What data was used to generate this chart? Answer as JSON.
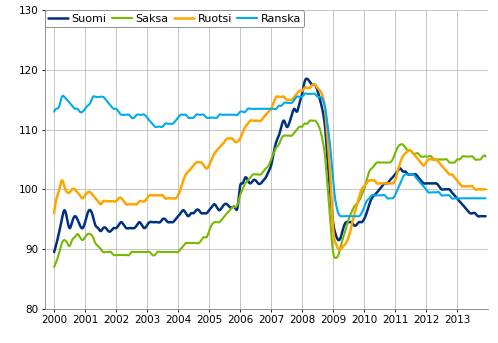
{
  "xlim": [
    1999.7,
    2014.0
  ],
  "ylim": [
    80,
    130
  ],
  "yticks": [
    80,
    90,
    100,
    110,
    120,
    130
  ],
  "xticks": [
    2000,
    2001,
    2002,
    2003,
    2004,
    2005,
    2006,
    2007,
    2008,
    2009,
    2010,
    2011,
    2012,
    2013
  ],
  "colors": {
    "Suomi": "#003080",
    "Saksa": "#76b900",
    "Ruotsi": "#ffa500",
    "Ranska": "#00aaee"
  },
  "linewidths": {
    "Suomi": 1.8,
    "Saksa": 1.5,
    "Ruotsi": 1.8,
    "Ranska": 1.5
  },
  "grid_color": "#b0b0b0",
  "background_color": "#ffffff",
  "Suomi_x": [
    2000.0,
    2000.08,
    2000.17,
    2000.25,
    2000.33,
    2000.42,
    2000.5,
    2000.58,
    2000.67,
    2000.75,
    2000.83,
    2000.92,
    2001.0,
    2001.08,
    2001.17,
    2001.25,
    2001.33,
    2001.42,
    2001.5,
    2001.58,
    2001.67,
    2001.75,
    2001.83,
    2001.92,
    2002.0,
    2002.08,
    2002.17,
    2002.25,
    2002.33,
    2002.42,
    2002.5,
    2002.58,
    2002.67,
    2002.75,
    2002.83,
    2002.92,
    2003.0,
    2003.08,
    2003.17,
    2003.25,
    2003.33,
    2003.42,
    2003.5,
    2003.58,
    2003.67,
    2003.75,
    2003.83,
    2003.92,
    2004.0,
    2004.08,
    2004.17,
    2004.25,
    2004.33,
    2004.42,
    2004.5,
    2004.58,
    2004.67,
    2004.75,
    2004.83,
    2004.92,
    2005.0,
    2005.08,
    2005.17,
    2005.25,
    2005.33,
    2005.42,
    2005.5,
    2005.58,
    2005.67,
    2005.75,
    2005.83,
    2005.92,
    2006.0,
    2006.08,
    2006.17,
    2006.25,
    2006.33,
    2006.42,
    2006.5,
    2006.58,
    2006.67,
    2006.75,
    2006.83,
    2006.92,
    2007.0,
    2007.08,
    2007.17,
    2007.25,
    2007.33,
    2007.42,
    2007.5,
    2007.58,
    2007.67,
    2007.75,
    2007.83,
    2007.92,
    2008.0,
    2008.08,
    2008.17,
    2008.25,
    2008.33,
    2008.42,
    2008.5,
    2008.58,
    2008.67,
    2008.75,
    2008.83,
    2008.92,
    2009.0,
    2009.08,
    2009.17,
    2009.25,
    2009.33,
    2009.42,
    2009.5,
    2009.58,
    2009.67,
    2009.75,
    2009.83,
    2009.92,
    2010.0,
    2010.08,
    2010.17,
    2010.25,
    2010.33,
    2010.42,
    2010.5,
    2010.58,
    2010.67,
    2010.75,
    2010.83,
    2010.92,
    2011.0,
    2011.08,
    2011.17,
    2011.25,
    2011.33,
    2011.42,
    2011.5,
    2011.58,
    2011.67,
    2011.75,
    2011.83,
    2011.92,
    2012.0,
    2012.08,
    2012.17,
    2012.25,
    2012.33,
    2012.42,
    2012.5,
    2012.58,
    2012.67,
    2012.75,
    2012.83,
    2012.92,
    2013.0,
    2013.08,
    2013.17,
    2013.25,
    2013.33,
    2013.42,
    2013.5,
    2013.58,
    2013.67,
    2013.75,
    2013.83,
    2013.92
  ],
  "Suomi_y": [
    89.5,
    91.0,
    93.0,
    95.0,
    96.5,
    95.0,
    93.5,
    94.5,
    95.5,
    95.0,
    94.0,
    93.5,
    94.5,
    96.0,
    96.5,
    95.5,
    94.0,
    93.5,
    93.0,
    93.5,
    93.5,
    93.0,
    93.0,
    93.5,
    93.5,
    94.0,
    94.5,
    94.0,
    93.5,
    93.5,
    93.5,
    93.5,
    94.0,
    94.5,
    94.0,
    93.5,
    94.0,
    94.5,
    94.5,
    94.5,
    94.5,
    94.5,
    95.0,
    95.0,
    94.5,
    94.5,
    94.5,
    95.0,
    95.5,
    96.0,
    96.5,
    96.0,
    95.5,
    96.0,
    96.0,
    96.5,
    96.5,
    96.0,
    96.0,
    96.0,
    96.5,
    97.0,
    97.5,
    97.0,
    96.5,
    97.0,
    97.5,
    97.5,
    97.0,
    97.0,
    97.0,
    97.0,
    100.5,
    101.0,
    102.0,
    101.5,
    101.0,
    101.5,
    101.5,
    101.0,
    101.0,
    101.5,
    102.0,
    103.0,
    104.0,
    106.0,
    108.0,
    109.0,
    110.5,
    111.5,
    110.5,
    111.0,
    112.5,
    113.5,
    113.0,
    114.5,
    116.0,
    118.0,
    118.5,
    118.0,
    117.5,
    117.5,
    116.5,
    115.0,
    113.0,
    110.0,
    104.5,
    99.0,
    94.5,
    92.5,
    91.5,
    92.0,
    93.5,
    94.5,
    94.5,
    94.5,
    94.0,
    94.0,
    94.5,
    94.5,
    95.0,
    96.0,
    97.5,
    98.5,
    99.0,
    99.5,
    100.0,
    100.5,
    101.0,
    101.0,
    101.5,
    102.0,
    102.5,
    103.0,
    103.5,
    103.0,
    103.0,
    102.5,
    102.5,
    102.5,
    102.5,
    102.0,
    101.5,
    101.0,
    101.0,
    101.0,
    101.0,
    101.0,
    101.0,
    100.5,
    100.0,
    100.0,
    100.0,
    100.0,
    99.5,
    99.0,
    98.5,
    98.0,
    97.5,
    97.0,
    96.5,
    96.0,
    96.0,
    96.0,
    95.5,
    95.5,
    95.5,
    95.5
  ],
  "Saksa_y": [
    87.0,
    88.0,
    89.5,
    91.0,
    91.5,
    91.0,
    90.5,
    91.5,
    92.0,
    92.5,
    92.0,
    91.5,
    92.0,
    92.5,
    92.5,
    92.0,
    91.0,
    90.5,
    90.0,
    89.5,
    89.5,
    89.5,
    89.5,
    89.0,
    89.0,
    89.0,
    89.0,
    89.0,
    89.0,
    89.0,
    89.5,
    89.5,
    89.5,
    89.5,
    89.5,
    89.5,
    89.5,
    89.5,
    89.0,
    89.0,
    89.5,
    89.5,
    89.5,
    89.5,
    89.5,
    89.5,
    89.5,
    89.5,
    89.5,
    90.0,
    90.5,
    91.0,
    91.0,
    91.0,
    91.0,
    91.0,
    91.0,
    91.5,
    92.0,
    92.0,
    93.0,
    94.0,
    94.5,
    94.5,
    94.5,
    95.0,
    95.5,
    96.0,
    96.5,
    97.0,
    97.0,
    97.5,
    99.0,
    100.0,
    101.0,
    101.5,
    102.0,
    102.5,
    102.5,
    102.5,
    102.5,
    103.0,
    103.5,
    104.0,
    105.0,
    106.0,
    107.0,
    107.5,
    108.5,
    109.0,
    109.0,
    109.0,
    109.0,
    109.5,
    110.0,
    110.5,
    110.5,
    111.0,
    111.0,
    111.5,
    111.5,
    111.5,
    111.0,
    110.0,
    108.0,
    105.0,
    100.0,
    94.0,
    89.5,
    88.5,
    89.0,
    90.5,
    92.0,
    93.5,
    95.0,
    96.0,
    97.0,
    97.5,
    98.0,
    99.0,
    100.0,
    101.5,
    103.0,
    103.5,
    104.0,
    104.5,
    104.5,
    104.5,
    104.5,
    104.5,
    104.5,
    105.0,
    106.0,
    107.0,
    107.5,
    107.5,
    107.0,
    106.5,
    106.5,
    106.0,
    106.0,
    106.0,
    105.5,
    105.5,
    105.5,
    105.5,
    105.5,
    105.0,
    105.0,
    105.0,
    105.0,
    105.0,
    105.0,
    104.5,
    104.5,
    104.5,
    105.0,
    105.0,
    105.5,
    105.5,
    105.5,
    105.5,
    105.5,
    105.0,
    105.0,
    105.0,
    105.5,
    105.5
  ],
  "Ruotsi_y": [
    96.0,
    98.5,
    100.0,
    101.5,
    100.5,
    99.5,
    99.5,
    100.0,
    100.0,
    99.5,
    99.0,
    98.5,
    99.0,
    99.5,
    99.5,
    99.0,
    98.5,
    98.0,
    97.5,
    98.0,
    98.0,
    98.0,
    98.0,
    98.0,
    98.0,
    98.5,
    98.5,
    98.0,
    97.5,
    97.5,
    97.5,
    97.5,
    97.5,
    98.0,
    98.0,
    98.0,
    98.5,
    99.0,
    99.0,
    99.0,
    99.0,
    99.0,
    99.0,
    98.5,
    98.5,
    98.5,
    98.5,
    98.5,
    99.0,
    100.0,
    101.5,
    102.5,
    103.0,
    103.5,
    104.0,
    104.5,
    104.5,
    104.5,
    104.0,
    103.5,
    104.0,
    105.0,
    106.0,
    106.5,
    107.0,
    107.5,
    108.0,
    108.5,
    108.5,
    108.5,
    108.0,
    108.0,
    108.5,
    109.5,
    110.5,
    111.0,
    111.5,
    111.5,
    111.5,
    111.5,
    111.5,
    112.0,
    112.5,
    113.0,
    113.5,
    114.5,
    115.5,
    115.5,
    115.5,
    115.5,
    115.0,
    115.0,
    115.0,
    115.5,
    116.0,
    116.5,
    116.5,
    117.0,
    117.0,
    117.0,
    117.5,
    117.5,
    117.0,
    116.5,
    115.5,
    113.0,
    108.0,
    101.5,
    93.5,
    91.0,
    90.0,
    90.0,
    90.5,
    91.0,
    92.0,
    93.5,
    95.5,
    97.0,
    98.5,
    100.0,
    100.5,
    101.0,
    101.5,
    101.5,
    101.5,
    101.0,
    101.0,
    101.0,
    101.0,
    101.0,
    101.0,
    101.0,
    101.5,
    103.0,
    104.5,
    105.5,
    106.0,
    106.5,
    106.5,
    106.0,
    105.5,
    105.0,
    104.5,
    104.0,
    104.5,
    105.0,
    105.0,
    105.0,
    105.0,
    104.5,
    104.0,
    103.5,
    103.0,
    102.5,
    102.5,
    102.0,
    101.5,
    101.0,
    100.5,
    100.5,
    100.5,
    100.5,
    100.5,
    100.0,
    100.0,
    100.0,
    100.0,
    100.0
  ],
  "Ranska_y": [
    113.0,
    113.5,
    114.0,
    115.5,
    115.5,
    115.0,
    114.5,
    114.0,
    113.5,
    113.5,
    113.0,
    113.0,
    113.5,
    114.0,
    114.5,
    115.5,
    115.5,
    115.5,
    115.5,
    115.5,
    115.0,
    114.5,
    114.0,
    113.5,
    113.5,
    113.0,
    112.5,
    112.5,
    112.5,
    112.5,
    112.0,
    112.0,
    112.5,
    112.5,
    112.5,
    112.5,
    112.0,
    111.5,
    111.0,
    110.5,
    110.5,
    110.5,
    110.5,
    111.0,
    111.0,
    111.0,
    111.0,
    111.5,
    112.0,
    112.5,
    112.5,
    112.5,
    112.0,
    112.0,
    112.0,
    112.5,
    112.5,
    112.5,
    112.5,
    112.0,
    112.0,
    112.0,
    112.0,
    112.0,
    112.5,
    112.5,
    112.5,
    112.5,
    112.5,
    112.5,
    112.5,
    112.5,
    113.0,
    113.0,
    113.0,
    113.5,
    113.5,
    113.5,
    113.5,
    113.5,
    113.5,
    113.5,
    113.5,
    113.5,
    113.5,
    113.5,
    113.5,
    114.0,
    114.0,
    114.5,
    114.5,
    114.5,
    114.5,
    115.0,
    115.5,
    115.5,
    115.5,
    116.0,
    116.0,
    116.0,
    116.0,
    116.0,
    115.5,
    115.5,
    115.0,
    113.5,
    110.5,
    106.5,
    101.5,
    98.0,
    96.0,
    95.5,
    95.5,
    95.5,
    95.5,
    95.5,
    95.5,
    95.5,
    95.5,
    96.0,
    97.0,
    98.0,
    98.5,
    99.0,
    99.0,
    99.0,
    99.0,
    99.0,
    99.0,
    98.5,
    98.5,
    98.5,
    99.0,
    100.0,
    101.0,
    102.0,
    102.5,
    102.5,
    102.5,
    102.5,
    102.0,
    101.5,
    101.0,
    100.5,
    100.0,
    99.5,
    99.5,
    99.5,
    99.5,
    99.5,
    99.0,
    99.0,
    99.0,
    99.0,
    98.5,
    98.5,
    98.5,
    98.5,
    98.5,
    98.5,
    98.5,
    98.5,
    98.5,
    98.5,
    98.5,
    98.5,
    98.5,
    98.5
  ],
  "legend_labels": [
    "Suomi",
    "Saksa",
    "Ruotsi",
    "Ranska"
  ]
}
